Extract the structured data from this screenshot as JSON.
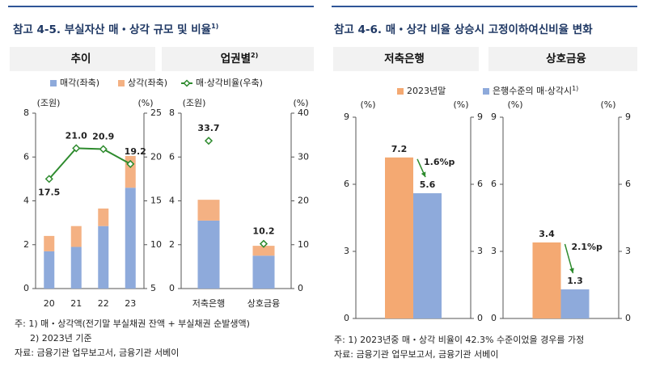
{
  "panels": [
    {
      "title": "참고 4-5. 부실자산 매・상각 규모 및 비율",
      "title_note": "1)",
      "notes": [
        "주: 1) 매・상각액(전기말 부실채권 잔액 + 부실채권 순발생액)",
        "2) 2023년 기준",
        "자료: 금융기관 업무보고서, 금융기관 서베이"
      ]
    },
    {
      "title": "참고 4-6. 매・상각 비율 상승시 고정이하여신비율 변화",
      "notes": [
        "주: 1) 2023년중 매・상각 비율이 42.3% 수준이었을 경우를 가정",
        "자료: 금융기관 업무보고서, 금융기관 서베이"
      ]
    }
  ],
  "chart_data": [
    {
      "type": "bar",
      "stacked": true,
      "subtitle": "추이",
      "ylabel": "(조원)",
      "y2label": "(%)",
      "categories": [
        "20",
        "21",
        "22",
        "23"
      ],
      "ylim": [
        0,
        8
      ],
      "yticks": [
        0,
        2,
        4,
        6,
        8
      ],
      "y2lim": [
        5,
        25
      ],
      "y2ticks": [
        5,
        10,
        15,
        20,
        25
      ],
      "series": [
        {
          "name": "매각(좌축)",
          "color": "#8eaadb",
          "values": [
            1.7,
            1.9,
            2.85,
            4.6
          ]
        },
        {
          "name": "상각(좌축)",
          "color": "#f4b183",
          "values": [
            0.7,
            0.95,
            0.8,
            1.45
          ]
        },
        {
          "name": "매·상각비율(우축)",
          "type": "line",
          "axis": "y2",
          "color": "#2e8b2e",
          "values": [
            17.5,
            21.0,
            20.9,
            19.2
          ],
          "value_labels": [
            "17.5",
            "21.0",
            "20.9",
            "19.2"
          ]
        }
      ]
    },
    {
      "type": "bar",
      "stacked": true,
      "subtitle": "업권별",
      "subtitle_note": "2)",
      "ylabel": "(조원)",
      "y2label": "(%)",
      "categories": [
        "저축은행",
        "상호금융"
      ],
      "ylim": [
        0,
        8
      ],
      "yticks": [
        0,
        2,
        4,
        6,
        8
      ],
      "y2lim": [
        0,
        40
      ],
      "y2ticks": [
        0,
        10,
        20,
        30,
        40
      ],
      "series": [
        {
          "color": "#8eaadb",
          "values": [
            3.1,
            1.5
          ]
        },
        {
          "color": "#f4b183",
          "values": [
            0.95,
            0.45
          ]
        },
        {
          "type": "scatter",
          "axis": "y2",
          "color": "#2e8b2e",
          "values": [
            33.7,
            10.2
          ]
        }
      ]
    },
    {
      "type": "bar",
      "subtitle": "저축은행",
      "ylabel": "(%)",
      "y2label": "(%)",
      "categories": [
        null
      ],
      "ylim": [
        0,
        9
      ],
      "yticks": [
        0,
        3,
        6,
        9
      ],
      "y2lim": [
        0,
        9
      ],
      "y2ticks": [
        0,
        3,
        6,
        9
      ],
      "annotation": "1.6%p",
      "series": [
        {
          "name": "2023년말",
          "color": "#f4a972",
          "values": [
            7.2
          ]
        },
        {
          "name": "은행수준의 매·상각시",
          "name_note": "1)",
          "color": "#8eaadb",
          "values": [
            5.6
          ]
        }
      ]
    },
    {
      "type": "bar",
      "subtitle": "상호금융",
      "ylabel": "(%)",
      "y2label": "(%)",
      "categories": [
        null
      ],
      "ylim": [
        0,
        9
      ],
      "yticks": [
        0,
        3,
        6,
        9
      ],
      "y2lim": [
        0,
        9
      ],
      "y2ticks": [
        0,
        3,
        6,
        9
      ],
      "annotation": "2.1%p",
      "series": [
        {
          "color": "#f4a972",
          "values": [
            3.4
          ]
        },
        {
          "color": "#8eaadb",
          "values": [
            1.3
          ]
        }
      ]
    }
  ]
}
